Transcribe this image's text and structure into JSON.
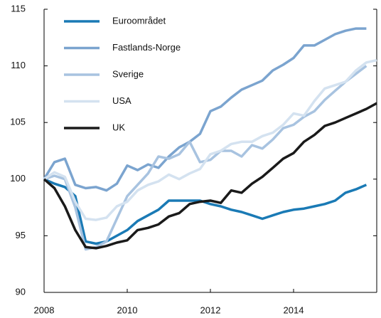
{
  "chart_data": {
    "type": "line",
    "x": [
      2008,
      2008.25,
      2008.5,
      2008.75,
      2009,
      2009.25,
      2009.5,
      2009.75,
      2010,
      2010.25,
      2010.5,
      2010.75,
      2011,
      2011.25,
      2011.5,
      2011.75,
      2012,
      2012.25,
      2012.5,
      2012.75,
      2013,
      2013.25,
      2013.5,
      2013.75,
      2014,
      2014.25,
      2014.5,
      2014.75,
      2015,
      2015.25,
      2015.5,
      2015.75,
      2016
    ],
    "series": [
      {
        "name": "Euroområdet",
        "color": "#1a7ab5",
        "values": [
          100,
          99.6,
          99.3,
          98.5,
          94.5,
          94.3,
          94.5,
          95.0,
          95.5,
          96.3,
          96.8,
          97.3,
          98.1,
          98.1,
          98.1,
          98.1,
          97.8,
          97.6,
          97.3,
          97.1,
          96.8,
          96.5,
          96.8,
          97.1,
          97.3,
          97.4,
          97.6,
          97.8,
          98.1,
          98.8,
          99.1,
          99.5,
          null
        ]
      },
      {
        "name": "Fastlands-Norge",
        "color": "#7ba4cf",
        "values": [
          100,
          101.5,
          101.8,
          99.5,
          99.2,
          99.3,
          99.0,
          99.6,
          101.2,
          100.8,
          101.3,
          101.0,
          102.0,
          102.8,
          103.3,
          104.0,
          106.0,
          106.4,
          107.2,
          107.9,
          108.3,
          108.7,
          109.6,
          110.1,
          110.7,
          111.8,
          111.8,
          112.3,
          112.8,
          113.1,
          113.3,
          113.3,
          null
        ]
      },
      {
        "name": "Sverige",
        "color": "#a8c3e0",
        "values": [
          100,
          100.3,
          100.0,
          97.5,
          93.8,
          94.0,
          94.5,
          96.5,
          98.5,
          99.5,
          100.5,
          102.0,
          101.8,
          102.2,
          103.3,
          101.5,
          101.7,
          102.5,
          102.5,
          102.0,
          103.0,
          102.7,
          103.5,
          104.5,
          104.8,
          105.5,
          106.0,
          107.0,
          107.8,
          108.6,
          109.3,
          110.0,
          null
        ]
      },
      {
        "name": "USA",
        "color": "#d4e2f0",
        "values": [
          100,
          100.6,
          100.2,
          98.0,
          96.5,
          96.4,
          96.6,
          97.6,
          98.0,
          99.0,
          99.5,
          99.8,
          100.4,
          100.0,
          100.5,
          100.9,
          102.2,
          102.5,
          103.1,
          103.3,
          103.3,
          103.8,
          104.1,
          104.8,
          105.8,
          105.6,
          106.9,
          108.0,
          108.3,
          108.6,
          109.6,
          110.3,
          110.5
        ]
      },
      {
        "name": "UK",
        "color": "#1a1a1a",
        "values": [
          100,
          99.2,
          97.6,
          95.5,
          94.0,
          93.9,
          94.1,
          94.4,
          94.6,
          95.5,
          95.7,
          96.0,
          96.7,
          97.0,
          97.8,
          98.0,
          98.1,
          97.9,
          99.0,
          98.8,
          99.6,
          100.2,
          101.0,
          101.8,
          102.3,
          103.3,
          103.9,
          104.7,
          105.0,
          105.4,
          105.8,
          106.2,
          106.7
        ]
      }
    ],
    "xlim": [
      2008,
      2016
    ],
    "xticks": [
      2008,
      2010,
      2012,
      2014
    ],
    "ylim": [
      90,
      115
    ],
    "yticks": [
      90,
      95,
      100,
      105,
      110,
      115
    ]
  }
}
